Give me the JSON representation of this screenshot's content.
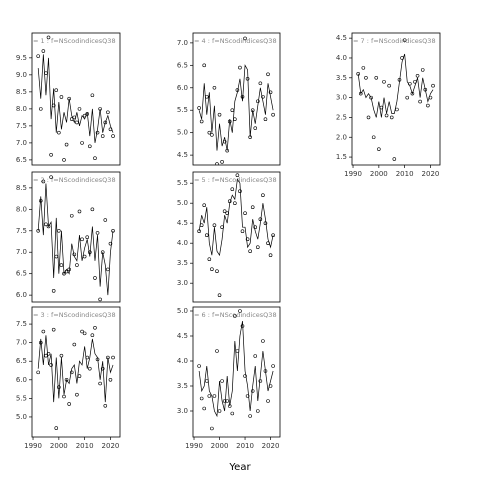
{
  "xlabel": "Year",
  "chart_data": [
    {
      "type": "line",
      "label": "= 1 : f=NScodindicesQ38",
      "x": [
        1992,
        1993,
        1994,
        1995,
        1996,
        1997,
        1998,
        1999,
        2000,
        2001,
        2002,
        2003,
        2004,
        2005,
        2006,
        2007,
        2008,
        2009,
        2010,
        2011,
        2012,
        2013,
        2014,
        2015,
        2016,
        2017,
        2018,
        2019,
        2020,
        2021
      ],
      "series": [
        {
          "marker": "circle",
          "color": "#000000",
          "values": [
            9.55,
            8.0,
            9.7,
            9.05,
            10.1,
            6.65,
            8.1,
            8.55,
            7.3,
            8.35,
            6.5,
            6.95,
            8.3,
            7.7,
            7.75,
            7.6,
            8.0,
            7.0,
            7.8,
            7.85,
            6.9,
            8.4,
            6.55,
            7.3,
            8.0,
            7.2,
            7.6,
            7.9,
            7.4,
            7.2
          ]
        },
        {
          "marker": "none",
          "color": "#000000",
          "values": [
            9.2,
            8.3,
            9.6,
            8.4,
            9.5,
            7.7,
            8.6,
            7.3,
            8.2,
            7.4,
            7.9,
            7.6,
            8.3,
            7.8,
            7.6,
            7.9,
            7.5,
            7.8,
            7.7,
            7.9,
            7.2,
            8.0,
            7.0,
            7.4,
            8.0,
            7.3,
            7.6,
            7.8,
            7.5,
            7.3
          ]
        }
      ],
      "xlim": [
        1989.6,
        2023.7
      ],
      "ylim": [
        6.35,
        10.23
      ],
      "yticks": [
        6.5,
        {
          "value": 7,
          "label": "7.0"
        },
        7.5,
        {
          "value": 8,
          "label": "8.0"
        },
        8.5,
        {
          "value": 9,
          "label": "9.0"
        },
        9.5
      ]
    },
    {
      "type": "line",
      "label": "= 2 : f=NScodindicesQ38",
      "x": [
        1992,
        1993,
        1994,
        1995,
        1996,
        1997,
        1998,
        1999,
        2000,
        2001,
        2002,
        2003,
        2004,
        2005,
        2006,
        2007,
        2008,
        2009,
        2010,
        2011,
        2012,
        2013,
        2014,
        2015,
        2016,
        2017,
        2018,
        2019,
        2020,
        2021
      ],
      "series": [
        {
          "marker": "circle",
          "color": "#000000",
          "values": [
            7.5,
            8.2,
            8.65,
            7.65,
            7.6,
            8.75,
            6.1,
            6.9,
            7.5,
            6.7,
            6.5,
            6.55,
            6.6,
            7.85,
            6.95,
            6.7,
            7.95,
            7.3,
            6.9,
            7.35,
            7.0,
            8.0,
            6.4,
            7.45,
            5.9,
            7.0,
            7.75,
            6.6,
            7.2,
            7.5
          ]
        },
        {
          "marker": "none",
          "color": "#000000",
          "values": [
            7.5,
            8.3,
            7.4,
            8.6,
            7.6,
            7.7,
            6.4,
            7.8,
            6.5,
            7.5,
            6.5,
            6.6,
            6.5,
            7.2,
            6.9,
            6.8,
            7.4,
            6.8,
            7.1,
            7.3,
            6.9,
            7.6,
            6.8,
            7.4,
            6.2,
            7.0,
            6.7,
            6.0,
            7.0,
            7.5
          ]
        }
      ],
      "xlim": [
        1989.6,
        2023.7
      ],
      "ylim": [
        5.84,
        8.87
      ],
      "yticks": [
        {
          "value": 6,
          "label": "6.0"
        },
        6.5,
        {
          "value": 7,
          "label": "7.0"
        },
        7.5,
        {
          "value": 8,
          "label": "8.0"
        },
        8.5
      ]
    },
    {
      "type": "line",
      "label": "= 3 : f=NScodindicesQ38",
      "x": [
        1992,
        1993,
        1994,
        1995,
        1996,
        1997,
        1998,
        1999,
        2000,
        2001,
        2002,
        2003,
        2004,
        2005,
        2006,
        2007,
        2008,
        2009,
        2010,
        2011,
        2012,
        2013,
        2014,
        2015,
        2016,
        2017,
        2018,
        2019,
        2020,
        2021
      ],
      "series": [
        {
          "marker": "circle",
          "color": "#000000",
          "values": [
            6.2,
            7.0,
            7.3,
            6.65,
            6.7,
            6.4,
            7.35,
            4.7,
            5.8,
            6.65,
            5.55,
            6.0,
            5.35,
            6.2,
            6.95,
            5.6,
            6.1,
            7.3,
            7.25,
            6.6,
            6.3,
            7.2,
            7.4,
            6.55,
            5.9,
            6.3,
            5.3,
            6.6,
            6.0,
            6.6
          ]
        },
        {
          "marker": "none",
          "color": "#000000",
          "values": [
            6.3,
            7.1,
            6.4,
            7.2,
            6.4,
            6.7,
            5.4,
            6.6,
            5.5,
            6.6,
            5.6,
            6.0,
            5.9,
            6.3,
            6.4,
            5.9,
            6.5,
            6.4,
            6.9,
            6.3,
            6.6,
            7.1,
            6.7,
            6.6,
            6.0,
            6.5,
            5.4,
            6.6,
            6.2,
            6.4
          ]
        }
      ],
      "xlim": [
        1989.6,
        2023.7
      ],
      "ylim": [
        4.46,
        7.96
      ],
      "yticks": [
        {
          "value": 5,
          "label": "5.0"
        },
        5.5,
        {
          "value": 6,
          "label": "6.0"
        },
        6.5,
        {
          "value": 7,
          "label": "7.0"
        },
        7.5
      ],
      "xticks": [
        1990,
        2000,
        2010,
        2020
      ]
    },
    {
      "type": "line",
      "label": "= 4 : f=NScodindicesQ38",
      "x": [
        1992,
        1993,
        1994,
        1995,
        1996,
        1997,
        1998,
        1999,
        2000,
        2001,
        2002,
        2003,
        2004,
        2005,
        2006,
        2007,
        2008,
        2009,
        2010,
        2011,
        2012,
        2013,
        2014,
        2015,
        2016,
        2017,
        2018,
        2019,
        2020,
        2021
      ],
      "series": [
        {
          "marker": "circle",
          "color": "#000000",
          "values": [
            5.55,
            5.25,
            6.5,
            5.8,
            5.0,
            4.95,
            6.0,
            4.3,
            5.4,
            4.35,
            4.8,
            4.6,
            5.25,
            5.5,
            5.3,
            5.95,
            6.45,
            5.8,
            7.1,
            6.2,
            4.9,
            5.5,
            5.1,
            5.7,
            6.1,
            5.8,
            5.3,
            6.3,
            5.9,
            5.4
          ]
        },
        {
          "marker": "none",
          "color": "#000000",
          "values": [
            5.5,
            5.3,
            6.1,
            5.4,
            5.9,
            5.0,
            5.6,
            4.6,
            5.2,
            4.7,
            4.9,
            4.6,
            5.3,
            5.0,
            5.7,
            5.9,
            6.2,
            5.7,
            6.5,
            6.4,
            4.9,
            5.5,
            5.2,
            5.6,
            6.0,
            5.7,
            5.4,
            6.1,
            5.8,
            5.5
          ]
        }
      ],
      "xlim": [
        1989.6,
        2023.7
      ],
      "ylim": [
        4.28,
        7.22
      ],
      "yticks": [
        4.5,
        {
          "value": 5,
          "label": "5.0"
        },
        5.5,
        {
          "value": 6,
          "label": "6.0"
        },
        6.5,
        {
          "value": 7,
          "label": "7.0"
        }
      ]
    },
    {
      "type": "line",
      "label": "= 5 : f=NScodindicesQ38",
      "x": [
        1992,
        1993,
        1994,
        1995,
        1996,
        1997,
        1998,
        1999,
        2000,
        2001,
        2002,
        2003,
        2004,
        2005,
        2006,
        2007,
        2008,
        2009,
        2010,
        2011,
        2012,
        2013,
        2014,
        2015,
        2016,
        2017,
        2018,
        2019,
        2020,
        2021
      ],
      "series": [
        {
          "marker": "circle",
          "color": "#000000",
          "values": [
            4.3,
            4.45,
            4.95,
            4.2,
            3.6,
            3.35,
            4.45,
            3.3,
            2.7,
            4.4,
            4.8,
            4.75,
            5.05,
            5.35,
            5.0,
            5.7,
            5.3,
            4.3,
            4.75,
            4.1,
            3.8,
            4.9,
            4.4,
            3.9,
            4.6,
            5.2,
            4.5,
            4.0,
            3.7,
            4.2
          ]
        },
        {
          "marker": "none",
          "color": "#000000",
          "values": [
            4.3,
            4.7,
            4.5,
            4.9,
            4.0,
            3.7,
            4.4,
            3.8,
            3.7,
            4.1,
            4.7,
            4.5,
            5.0,
            5.2,
            5.1,
            5.6,
            5.5,
            4.4,
            4.4,
            3.9,
            4.0,
            4.6,
            4.3,
            4.1,
            4.5,
            5.0,
            4.6,
            4.1,
            3.9,
            4.2
          ]
        }
      ],
      "xlim": [
        1989.6,
        2023.7
      ],
      "ylim": [
        2.53,
        5.78
      ],
      "yticks": [
        {
          "value": 3,
          "label": "3.0"
        },
        3.5,
        {
          "value": 4,
          "label": "4.0"
        },
        4.5,
        {
          "value": 5,
          "label": "5.0"
        },
        5.5
      ]
    },
    {
      "type": "line",
      "label": "= 6 : f=NScodindicesQ38",
      "x": [
        1992,
        1993,
        1994,
        1995,
        1996,
        1997,
        1998,
        1999,
        2000,
        2001,
        2002,
        2003,
        2004,
        2005,
        2006,
        2007,
        2008,
        2009,
        2010,
        2011,
        2012,
        2013,
        2014,
        2015,
        2016,
        2017,
        2018,
        2019,
        2020,
        2021
      ],
      "series": [
        {
          "marker": "circle",
          "color": "#000000",
          "values": [
            3.9,
            3.25,
            3.05,
            3.6,
            3.3,
            2.65,
            3.3,
            4.2,
            3.0,
            3.6,
            3.2,
            3.2,
            3.1,
            2.95,
            4.9,
            4.2,
            5.0,
            4.7,
            3.7,
            3.3,
            2.9,
            3.4,
            4.1,
            3.0,
            3.6,
            4.4,
            3.8,
            3.2,
            3.5,
            3.9
          ]
        },
        {
          "marker": "none",
          "color": "#000000",
          "values": [
            3.8,
            3.4,
            3.5,
            3.9,
            3.4,
            3.3,
            3.0,
            2.9,
            3.6,
            3.2,
            3.0,
            3.7,
            3.1,
            3.4,
            4.4,
            3.8,
            4.5,
            4.8,
            3.8,
            3.5,
            3.0,
            3.5,
            3.9,
            3.2,
            3.7,
            4.2,
            3.8,
            3.4,
            3.6,
            3.8
          ]
        }
      ],
      "xlim": [
        1989.6,
        2023.7
      ],
      "ylim": [
        2.48,
        5.08
      ],
      "yticks": [
        {
          "value": 3,
          "label": "3.0"
        },
        3.5,
        {
          "value": 4,
          "label": "4.0"
        },
        4.5,
        {
          "value": 5,
          "label": "5.0"
        }
      ],
      "xticks": [
        1990,
        2000,
        2010,
        2020
      ]
    },
    {
      "type": "line",
      "label": "= 7 : f=NScodindicesQ38",
      "x": [
        1992,
        1993,
        1994,
        1995,
        1996,
        1997,
        1998,
        1999,
        2000,
        2001,
        2002,
        2003,
        2004,
        2005,
        2006,
        2007,
        2008,
        2009,
        2010,
        2011,
        2012,
        2013,
        2014,
        2015,
        2016,
        2017,
        2018,
        2019,
        2020,
        2021
      ],
      "series": [
        {
          "marker": "circle",
          "color": "#000000",
          "values": [
            3.6,
            3.1,
            3.75,
            3.5,
            2.5,
            3.0,
            2.0,
            3.5,
            1.7,
            2.75,
            3.4,
            2.55,
            3.3,
            2.5,
            1.45,
            2.7,
            3.45,
            4.0,
            4.45,
            3.0,
            3.35,
            3.1,
            3.4,
            3.55,
            2.9,
            3.7,
            3.2,
            2.8,
            3.0,
            3.3
          ]
        },
        {
          "marker": "none",
          "color": "#000000",
          "values": [
            3.6,
            3.1,
            3.2,
            3.0,
            3.1,
            3.0,
            2.7,
            2.5,
            2.9,
            2.5,
            3.0,
            2.6,
            2.9,
            2.6,
            2.6,
            2.9,
            3.4,
            3.9,
            4.1,
            3.4,
            3.3,
            3.1,
            3.3,
            3.5,
            3.0,
            3.5,
            3.2,
            2.9,
            3.1,
            3.2
          ]
        }
      ],
      "xlim": [
        1989.6,
        2023.7
      ],
      "ylim": [
        1.3,
        4.63
      ],
      "yticks": [
        1.5,
        {
          "value": 2,
          "label": "2.0"
        },
        2.5,
        {
          "value": 3,
          "label": "3.0"
        },
        3.5,
        {
          "value": 4,
          "label": "4.0"
        },
        4.5
      ],
      "xticks": [
        1990,
        2000,
        2010,
        2020
      ]
    }
  ]
}
